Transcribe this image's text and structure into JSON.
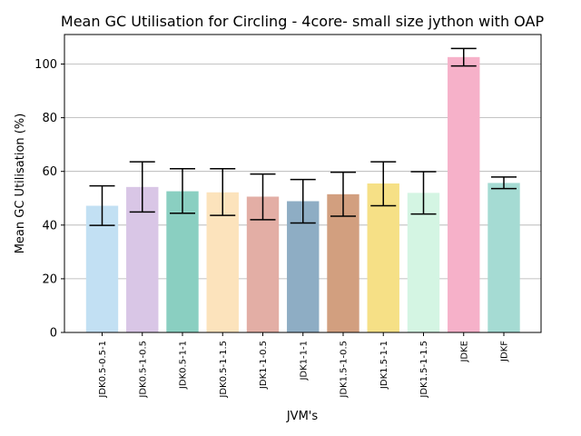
{
  "chart_data": {
    "type": "bar",
    "title": "Mean GC Utilisation for Circling - 4core- small size jython with OAP",
    "xlabel": "JVM's",
    "ylabel": "Mean GC Utilisation (%)",
    "categories": [
      "JDK0.5-0.5-1",
      "JDK0.5-1-0.5",
      "JDK0.5-1-1",
      "JDK0.5-1-1.5",
      "JDK1-1-0.5",
      "JDK1-1-1",
      "JDK1.5-1-0.5",
      "JDK1.5-1-1",
      "JDK1.5-1-1.5",
      "JDKE",
      "JDKF"
    ],
    "values": [
      47.2,
      54.2,
      52.6,
      52.2,
      50.6,
      48.9,
      51.5,
      55.5,
      52.0,
      102.6,
      55.7
    ],
    "error_low": [
      39.9,
      44.9,
      44.4,
      43.6,
      42.0,
      40.8,
      43.3,
      47.2,
      44.1,
      99.3,
      53.6
    ],
    "error_high": [
      54.6,
      63.6,
      61.0,
      61.0,
      59.0,
      57.0,
      59.7,
      63.6,
      59.9,
      105.8,
      57.9
    ],
    "colors": [
      "#c2e0f3",
      "#d9c6e6",
      "#8acfc1",
      "#fce3bc",
      "#e3aea5",
      "#8eadc4",
      "#d29f7f",
      "#f6e086",
      "#d4f5e3",
      "#f6b1c9",
      "#a5dbd3"
    ],
    "ylim": [
      0,
      111
    ],
    "yticks": [
      0,
      20,
      40,
      60,
      80,
      100
    ],
    "grid": "horizontal",
    "legend": "none"
  }
}
